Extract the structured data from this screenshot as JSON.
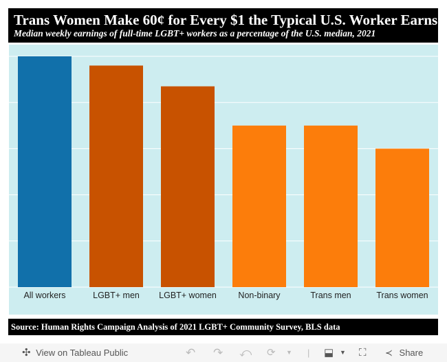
{
  "header": {
    "title": "Trans Women Make 60¢ for Every $1 the Typical U.S. Worker Earns",
    "subtitle": "Median weekly earnings of full-time LGBT+ workers as a percentage of the U.S. median, 2021"
  },
  "chart_data": {
    "type": "bar",
    "categories": [
      "All workers",
      "LGBT+ men",
      "LGBT+ women",
      "Non-binary",
      "Trans men",
      "Trans women"
    ],
    "values": [
      100,
      96,
      87,
      70,
      70,
      60
    ],
    "colors": [
      "#1170aa",
      "#c85200",
      "#c85200",
      "#fc7d0b",
      "#fc7d0b",
      "#fc7d0b"
    ],
    "ylim": [
      0,
      100
    ],
    "grid": true,
    "unit": "percent of U.S. median"
  },
  "source": "Source: Human Rights Campaign Analysis of 2021 LGBT+ Community Survey, BLS data",
  "toolbar": {
    "view_label": "View on Tableau Public",
    "share_label": "Share"
  }
}
